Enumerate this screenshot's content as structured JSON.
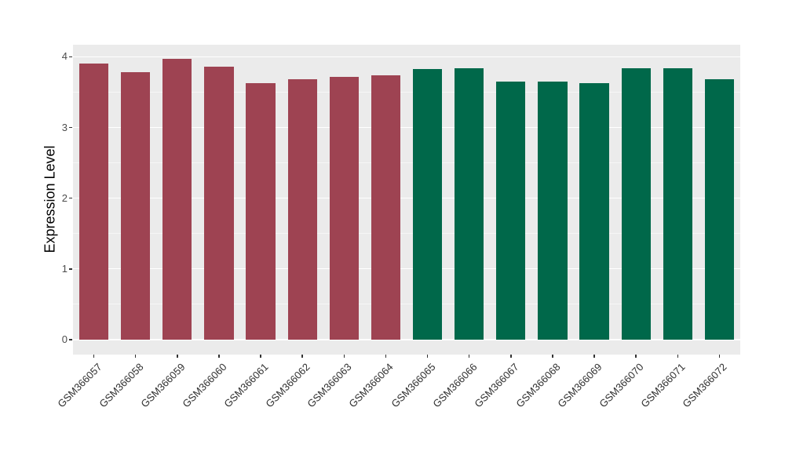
{
  "figure": {
    "background": "#FFFFFF",
    "panel_background": "#EBEBEB",
    "grid_color": "#FFFFFF",
    "tick_color": "#333333",
    "axis_text_color": "#4D4D4D",
    "group_colors": {
      "left_group": "#9E4352",
      "right_group": "#00684A"
    }
  },
  "chart_data": {
    "type": "bar",
    "title": "",
    "xlabel": "",
    "ylabel": "Expression Level",
    "legend": "none",
    "grid": true,
    "ylim": [
      -0.21,
      4.17
    ],
    "yticks": [
      0,
      1,
      2,
      3,
      4
    ],
    "minor_yticks": [
      0.5,
      1.5,
      2.5,
      3.5
    ],
    "categories": [
      "GSM366057",
      "GSM366058",
      "GSM366059",
      "GSM366060",
      "GSM366061",
      "GSM366062",
      "GSM366063",
      "GSM366064",
      "GSM366065",
      "GSM366066",
      "GSM366067",
      "GSM366068",
      "GSM366069",
      "GSM366070",
      "GSM366071",
      "GSM366072"
    ],
    "values": [
      3.9,
      3.78,
      3.97,
      3.86,
      3.63,
      3.68,
      3.71,
      3.74,
      3.83,
      3.84,
      3.65,
      3.65,
      3.63,
      3.84,
      3.84,
      3.68
    ],
    "bar_colors": [
      "#9E4352",
      "#9E4352",
      "#9E4352",
      "#9E4352",
      "#9E4352",
      "#9E4352",
      "#9E4352",
      "#9E4352",
      "#00684A",
      "#00684A",
      "#00684A",
      "#00684A",
      "#00684A",
      "#00684A",
      "#00684A",
      "#00684A"
    ]
  }
}
